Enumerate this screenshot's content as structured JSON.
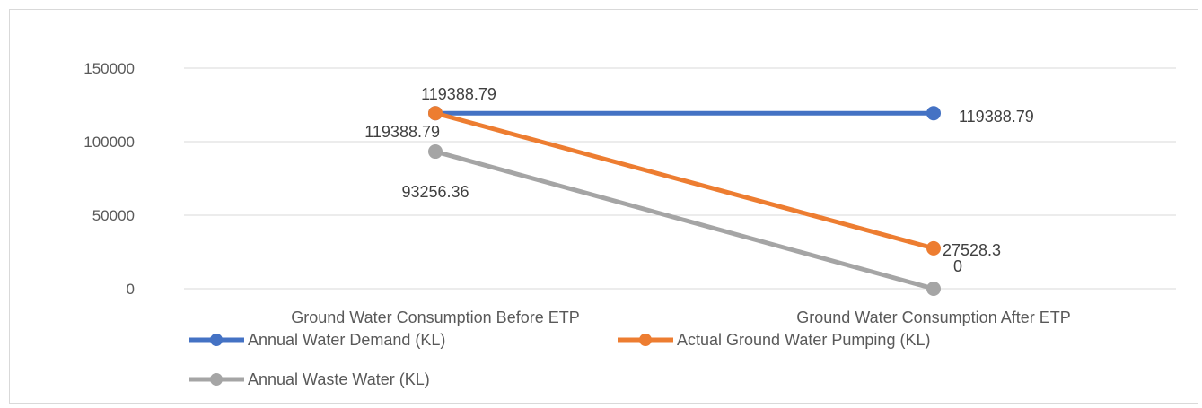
{
  "chart_data": {
    "type": "line",
    "title": "",
    "xlabel": "",
    "ylabel": "",
    "categories": [
      "Ground Water Consumption Before ETP",
      "Ground Water Consumption After ETP"
    ],
    "ylim": [
      0,
      150000
    ],
    "yticks": [
      0,
      50000,
      100000,
      150000
    ],
    "y_tick_labels": [
      "0",
      "50000",
      "100000",
      "150000"
    ],
    "grid": true,
    "legend_position": "bottom",
    "series": [
      {
        "name": "Annual Water Demand (KL)",
        "color": "#4472c4",
        "values": [
          119388.79,
          119388.79
        ],
        "labels": [
          "119388.79",
          "119388.79"
        ]
      },
      {
        "name": "Actual Ground Water Pumping (KL)",
        "color": "#ed7d31",
        "values": [
          119388.79,
          27528.3
        ],
        "labels": [
          "119388.79",
          "27528.3"
        ]
      },
      {
        "name": "Annual Waste Water (KL)",
        "color": "#a5a5a5",
        "values": [
          93256.36,
          0
        ],
        "labels": [
          "93256.36",
          "0"
        ]
      }
    ]
  }
}
